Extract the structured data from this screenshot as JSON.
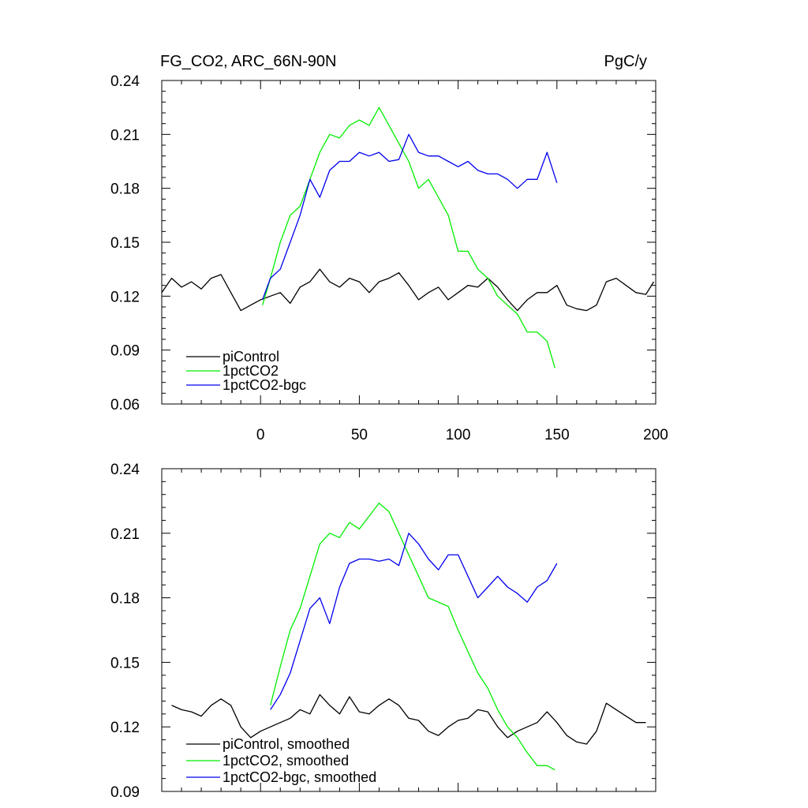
{
  "chart_data": [
    {
      "type": "line",
      "title": "FG_CO2, ARC_66N-90N",
      "units": "PgC/y",
      "xlabel": "",
      "ylabel": "",
      "xlim": [
        -50,
        200
      ],
      "ylim": [
        0.06,
        0.24
      ],
      "xticks": [
        0,
        50,
        100,
        150,
        200
      ],
      "xtick_labels": [
        "0",
        "50",
        "100",
        "150",
        "200"
      ],
      "yticks": [
        0.06,
        0.09,
        0.12,
        0.15,
        0.18,
        0.21,
        0.24
      ],
      "ytick_labels": [
        "0.06",
        "0.09",
        "0.12",
        "0.15",
        "0.18",
        "0.21",
        "0.24"
      ],
      "legend_position": "bottom-left",
      "series": [
        {
          "name": "piControl",
          "color": "#000000",
          "x": [
            -50,
            -45,
            -40,
            -35,
            -30,
            -25,
            -20,
            -15,
            -10,
            -5,
            0,
            5,
            10,
            15,
            20,
            25,
            30,
            35,
            40,
            45,
            50,
            55,
            60,
            65,
            70,
            75,
            80,
            85,
            90,
            95,
            100,
            105,
            110,
            115,
            120,
            125,
            130,
            135,
            140,
            145,
            150,
            155,
            160,
            165,
            170,
            175,
            180,
            185,
            190,
            195,
            199
          ],
          "values": [
            0.122,
            0.13,
            0.125,
            0.128,
            0.124,
            0.13,
            0.132,
            0.122,
            0.112,
            0.115,
            0.118,
            0.12,
            0.122,
            0.116,
            0.125,
            0.128,
            0.135,
            0.128,
            0.125,
            0.13,
            0.128,
            0.122,
            0.128,
            0.13,
            0.133,
            0.126,
            0.118,
            0.122,
            0.125,
            0.118,
            0.122,
            0.126,
            0.125,
            0.13,
            0.125,
            0.118,
            0.112,
            0.118,
            0.122,
            0.122,
            0.126,
            0.115,
            0.113,
            0.112,
            0.115,
            0.128,
            0.13,
            0.126,
            0.122,
            0.121,
            0.128
          ]
        },
        {
          "name": "1pctCO2",
          "color": "#00ee00",
          "x": [
            1,
            5,
            10,
            15,
            20,
            25,
            30,
            35,
            40,
            45,
            50,
            55,
            60,
            65,
            70,
            75,
            80,
            85,
            90,
            95,
            100,
            105,
            110,
            115,
            120,
            125,
            130,
            135,
            140,
            145,
            149
          ],
          "values": [
            0.115,
            0.13,
            0.15,
            0.165,
            0.17,
            0.185,
            0.2,
            0.21,
            0.208,
            0.215,
            0.218,
            0.215,
            0.225,
            0.215,
            0.205,
            0.195,
            0.18,
            0.185,
            0.175,
            0.165,
            0.145,
            0.145,
            0.135,
            0.13,
            0.12,
            0.115,
            0.11,
            0.1,
            0.1,
            0.095,
            0.08
          ]
        },
        {
          "name": "1pctCO2-bgc",
          "color": "#0000ee",
          "x": [
            1,
            5,
            10,
            15,
            20,
            25,
            30,
            35,
            40,
            45,
            50,
            55,
            60,
            65,
            70,
            75,
            80,
            85,
            90,
            95,
            100,
            105,
            110,
            115,
            120,
            125,
            130,
            135,
            140,
            145,
            150
          ],
          "values": [
            0.118,
            0.13,
            0.135,
            0.15,
            0.165,
            0.185,
            0.175,
            0.19,
            0.195,
            0.195,
            0.2,
            0.198,
            0.2,
            0.195,
            0.196,
            0.21,
            0.2,
            0.198,
            0.198,
            0.195,
            0.192,
            0.195,
            0.19,
            0.188,
            0.188,
            0.185,
            0.18,
            0.185,
            0.185,
            0.2,
            0.183
          ]
        }
      ]
    },
    {
      "type": "line",
      "title": "",
      "xlabel": "",
      "ylabel": "",
      "xlim": [
        -50,
        200
      ],
      "ylim": [
        0.09,
        0.24
      ],
      "xticks": [
        0,
        50,
        100,
        150,
        200
      ],
      "xtick_labels": [],
      "yticks": [
        0.09,
        0.12,
        0.15,
        0.18,
        0.21,
        0.24
      ],
      "ytick_labels": [
        "0.09",
        "0.12",
        "0.15",
        "0.18",
        "0.21",
        "0.24"
      ],
      "legend_position": "bottom-left",
      "series": [
        {
          "name": "piControl, smoothed",
          "color": "#000000",
          "x": [
            -45,
            -40,
            -35,
            -30,
            -25,
            -20,
            -15,
            -10,
            -5,
            0,
            5,
            10,
            15,
            20,
            25,
            30,
            35,
            40,
            45,
            50,
            55,
            60,
            65,
            70,
            75,
            80,
            85,
            90,
            95,
            100,
            105,
            110,
            115,
            120,
            125,
            130,
            135,
            140,
            145,
            150,
            155,
            160,
            165,
            170,
            175,
            180,
            185,
            190,
            195
          ],
          "values": [
            0.13,
            0.128,
            0.127,
            0.125,
            0.13,
            0.133,
            0.13,
            0.12,
            0.115,
            0.118,
            0.12,
            0.122,
            0.124,
            0.128,
            0.126,
            0.135,
            0.13,
            0.126,
            0.134,
            0.127,
            0.126,
            0.13,
            0.133,
            0.13,
            0.124,
            0.123,
            0.118,
            0.116,
            0.12,
            0.123,
            0.124,
            0.128,
            0.127,
            0.12,
            0.115,
            0.118,
            0.12,
            0.122,
            0.127,
            0.122,
            0.116,
            0.113,
            0.112,
            0.118,
            0.131,
            0.128,
            0.125,
            0.122,
            0.122
          ]
        },
        {
          "name": "1pctCO2, smoothed",
          "color": "#00ee00",
          "x": [
            5,
            10,
            15,
            20,
            25,
            30,
            35,
            40,
            45,
            50,
            55,
            60,
            65,
            70,
            75,
            80,
            85,
            90,
            95,
            100,
            105,
            110,
            115,
            120,
            125,
            130,
            135,
            140,
            145,
            149
          ],
          "values": [
            0.13,
            0.148,
            0.165,
            0.175,
            0.19,
            0.205,
            0.21,
            0.208,
            0.215,
            0.212,
            0.218,
            0.224,
            0.22,
            0.21,
            0.2,
            0.19,
            0.18,
            0.178,
            0.176,
            0.165,
            0.155,
            0.145,
            0.138,
            0.128,
            0.12,
            0.115,
            0.108,
            0.102,
            0.102,
            0.1
          ]
        },
        {
          "name": "1pctCO2-bgc, smoothed",
          "color": "#0000ee",
          "x": [
            5,
            10,
            15,
            20,
            25,
            30,
            35,
            40,
            45,
            50,
            55,
            60,
            65,
            70,
            75,
            80,
            85,
            90,
            95,
            100,
            105,
            110,
            115,
            120,
            125,
            130,
            135,
            140,
            145,
            150
          ],
          "values": [
            0.128,
            0.135,
            0.145,
            0.16,
            0.175,
            0.18,
            0.168,
            0.185,
            0.196,
            0.198,
            0.198,
            0.197,
            0.198,
            0.195,
            0.21,
            0.205,
            0.198,
            0.193,
            0.2,
            0.2,
            0.19,
            0.18,
            0.185,
            0.19,
            0.185,
            0.182,
            0.178,
            0.185,
            0.188,
            0.196
          ]
        }
      ]
    }
  ]
}
